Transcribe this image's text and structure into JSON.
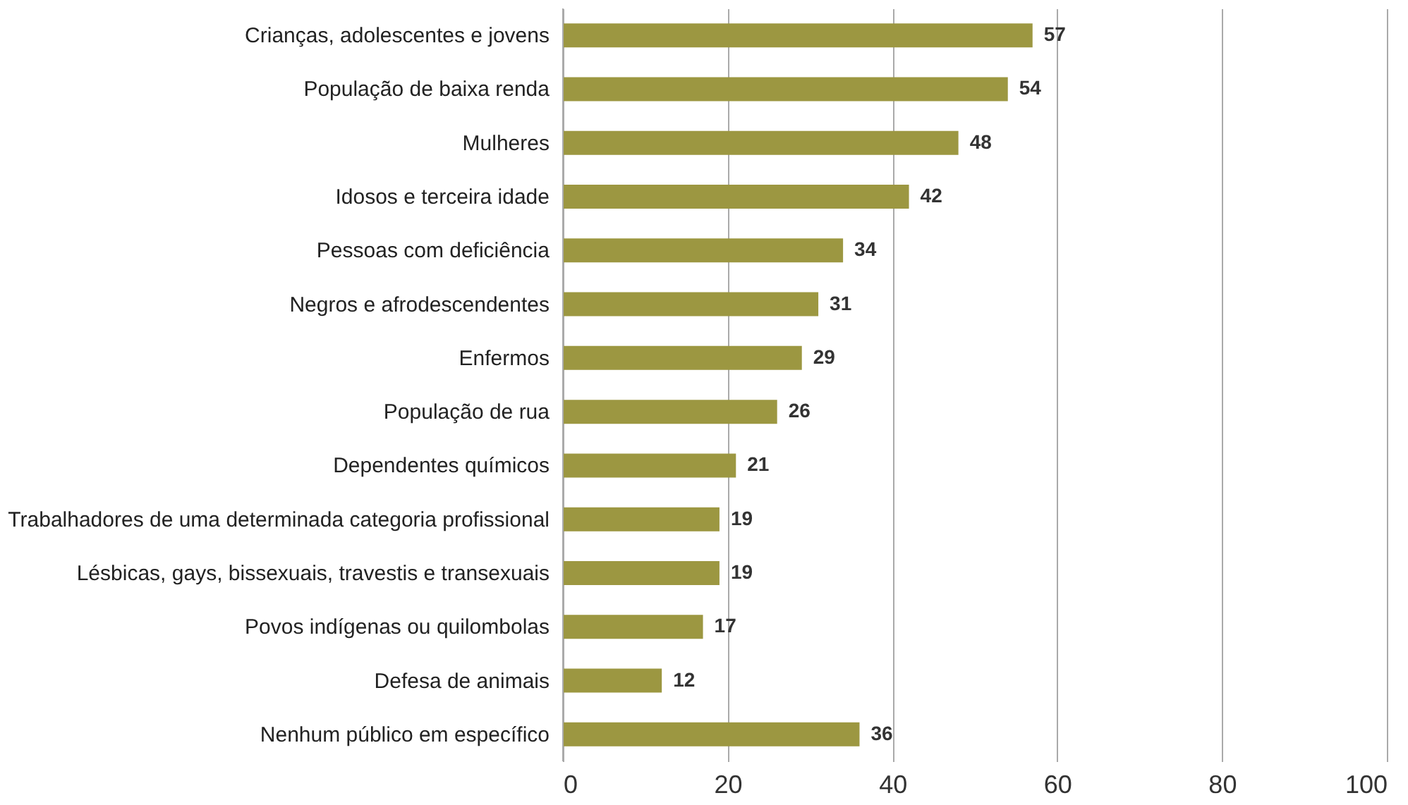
{
  "chart_data": {
    "type": "bar",
    "orientation": "horizontal",
    "categories": [
      "Crianças, adolescentes e jovens",
      "População de baixa renda",
      "Mulheres",
      "Idosos e terceira idade",
      "Pessoas com deficiência",
      "Negros e afrodescendentes",
      "Enfermos",
      "População de rua",
      "Dependentes químicos",
      "Trabalhadores de uma determinada categoria profissional",
      "Lésbicas, gays, bissexuais, travestis e transexuais",
      "Povos indígenas ou quilombolas",
      "Defesa de animais",
      "Nenhum público em específico"
    ],
    "values": [
      57,
      54,
      48,
      42,
      34,
      31,
      29,
      26,
      21,
      19,
      19,
      17,
      12,
      36
    ],
    "color": "#9c9741",
    "xlim": [
      0,
      100
    ],
    "xticks": [
      0,
      20,
      40,
      60,
      80,
      100
    ],
    "grid": "x",
    "data_labels": true
  }
}
